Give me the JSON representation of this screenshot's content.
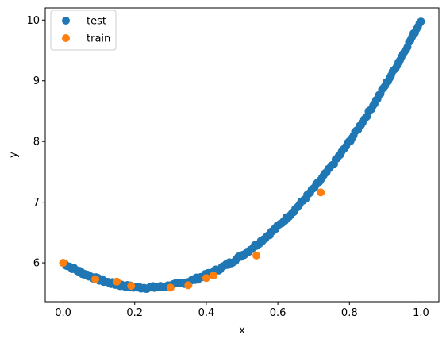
{
  "chart_data": {
    "type": "scatter",
    "xlabel": "x",
    "ylabel": "y",
    "xlim": [
      -0.05,
      1.05
    ],
    "ylim": [
      5.36,
      10.2
    ],
    "xticks": [
      0.0,
      0.2,
      0.4,
      0.6,
      0.8,
      1.0
    ],
    "xtick_labels": [
      "0.0",
      "0.2",
      "0.4",
      "0.6",
      "0.8",
      "1.0"
    ],
    "yticks": [
      6,
      7,
      8,
      9,
      10
    ],
    "ytick_labels": [
      "6",
      "7",
      "8",
      "9",
      "10"
    ],
    "grid": false,
    "legend_position": "top-left",
    "series": [
      {
        "name": "test",
        "color": "#1f77b4",
        "function": "y = 6 - 3.5x + 7.5x^2 (sampled x from 0 to 1, slight noise)",
        "x_range": [
          0.0,
          1.0
        ],
        "n_points": 240
      },
      {
        "name": "train",
        "color": "#ff7f0e",
        "points": [
          [
            0.0,
            6.0
          ],
          [
            0.09,
            5.73
          ],
          [
            0.15,
            5.69
          ],
          [
            0.19,
            5.62
          ],
          [
            0.3,
            5.59
          ],
          [
            0.35,
            5.63
          ],
          [
            0.4,
            5.75
          ],
          [
            0.42,
            5.79
          ],
          [
            0.54,
            6.12
          ],
          [
            0.72,
            7.16
          ]
        ]
      }
    ]
  }
}
